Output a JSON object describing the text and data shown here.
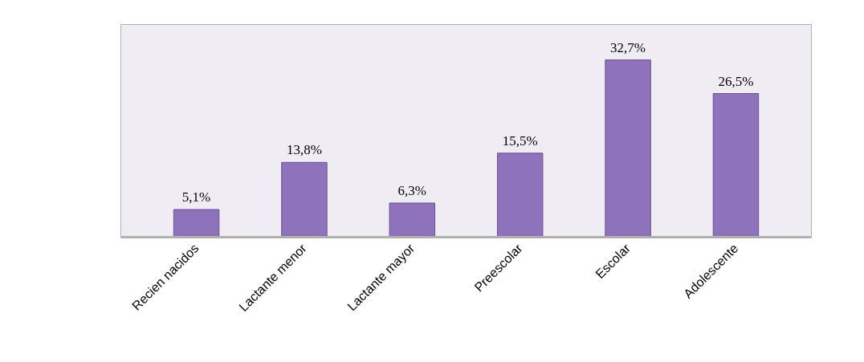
{
  "chart_data": {
    "type": "bar",
    "categories": [
      "Recien nacidos",
      "Lactante menor",
      "Lactante mayor",
      "Preescolar",
      "Escolar",
      "Adolescente"
    ],
    "values": [
      5.1,
      13.8,
      6.3,
      15.5,
      32.7,
      26.5
    ],
    "value_labels": [
      "5,1%",
      "13,8%",
      "6,3%",
      "15,5%",
      "32,7%",
      "26,5%"
    ],
    "color": "#8e72bb",
    "grid": false
  }
}
